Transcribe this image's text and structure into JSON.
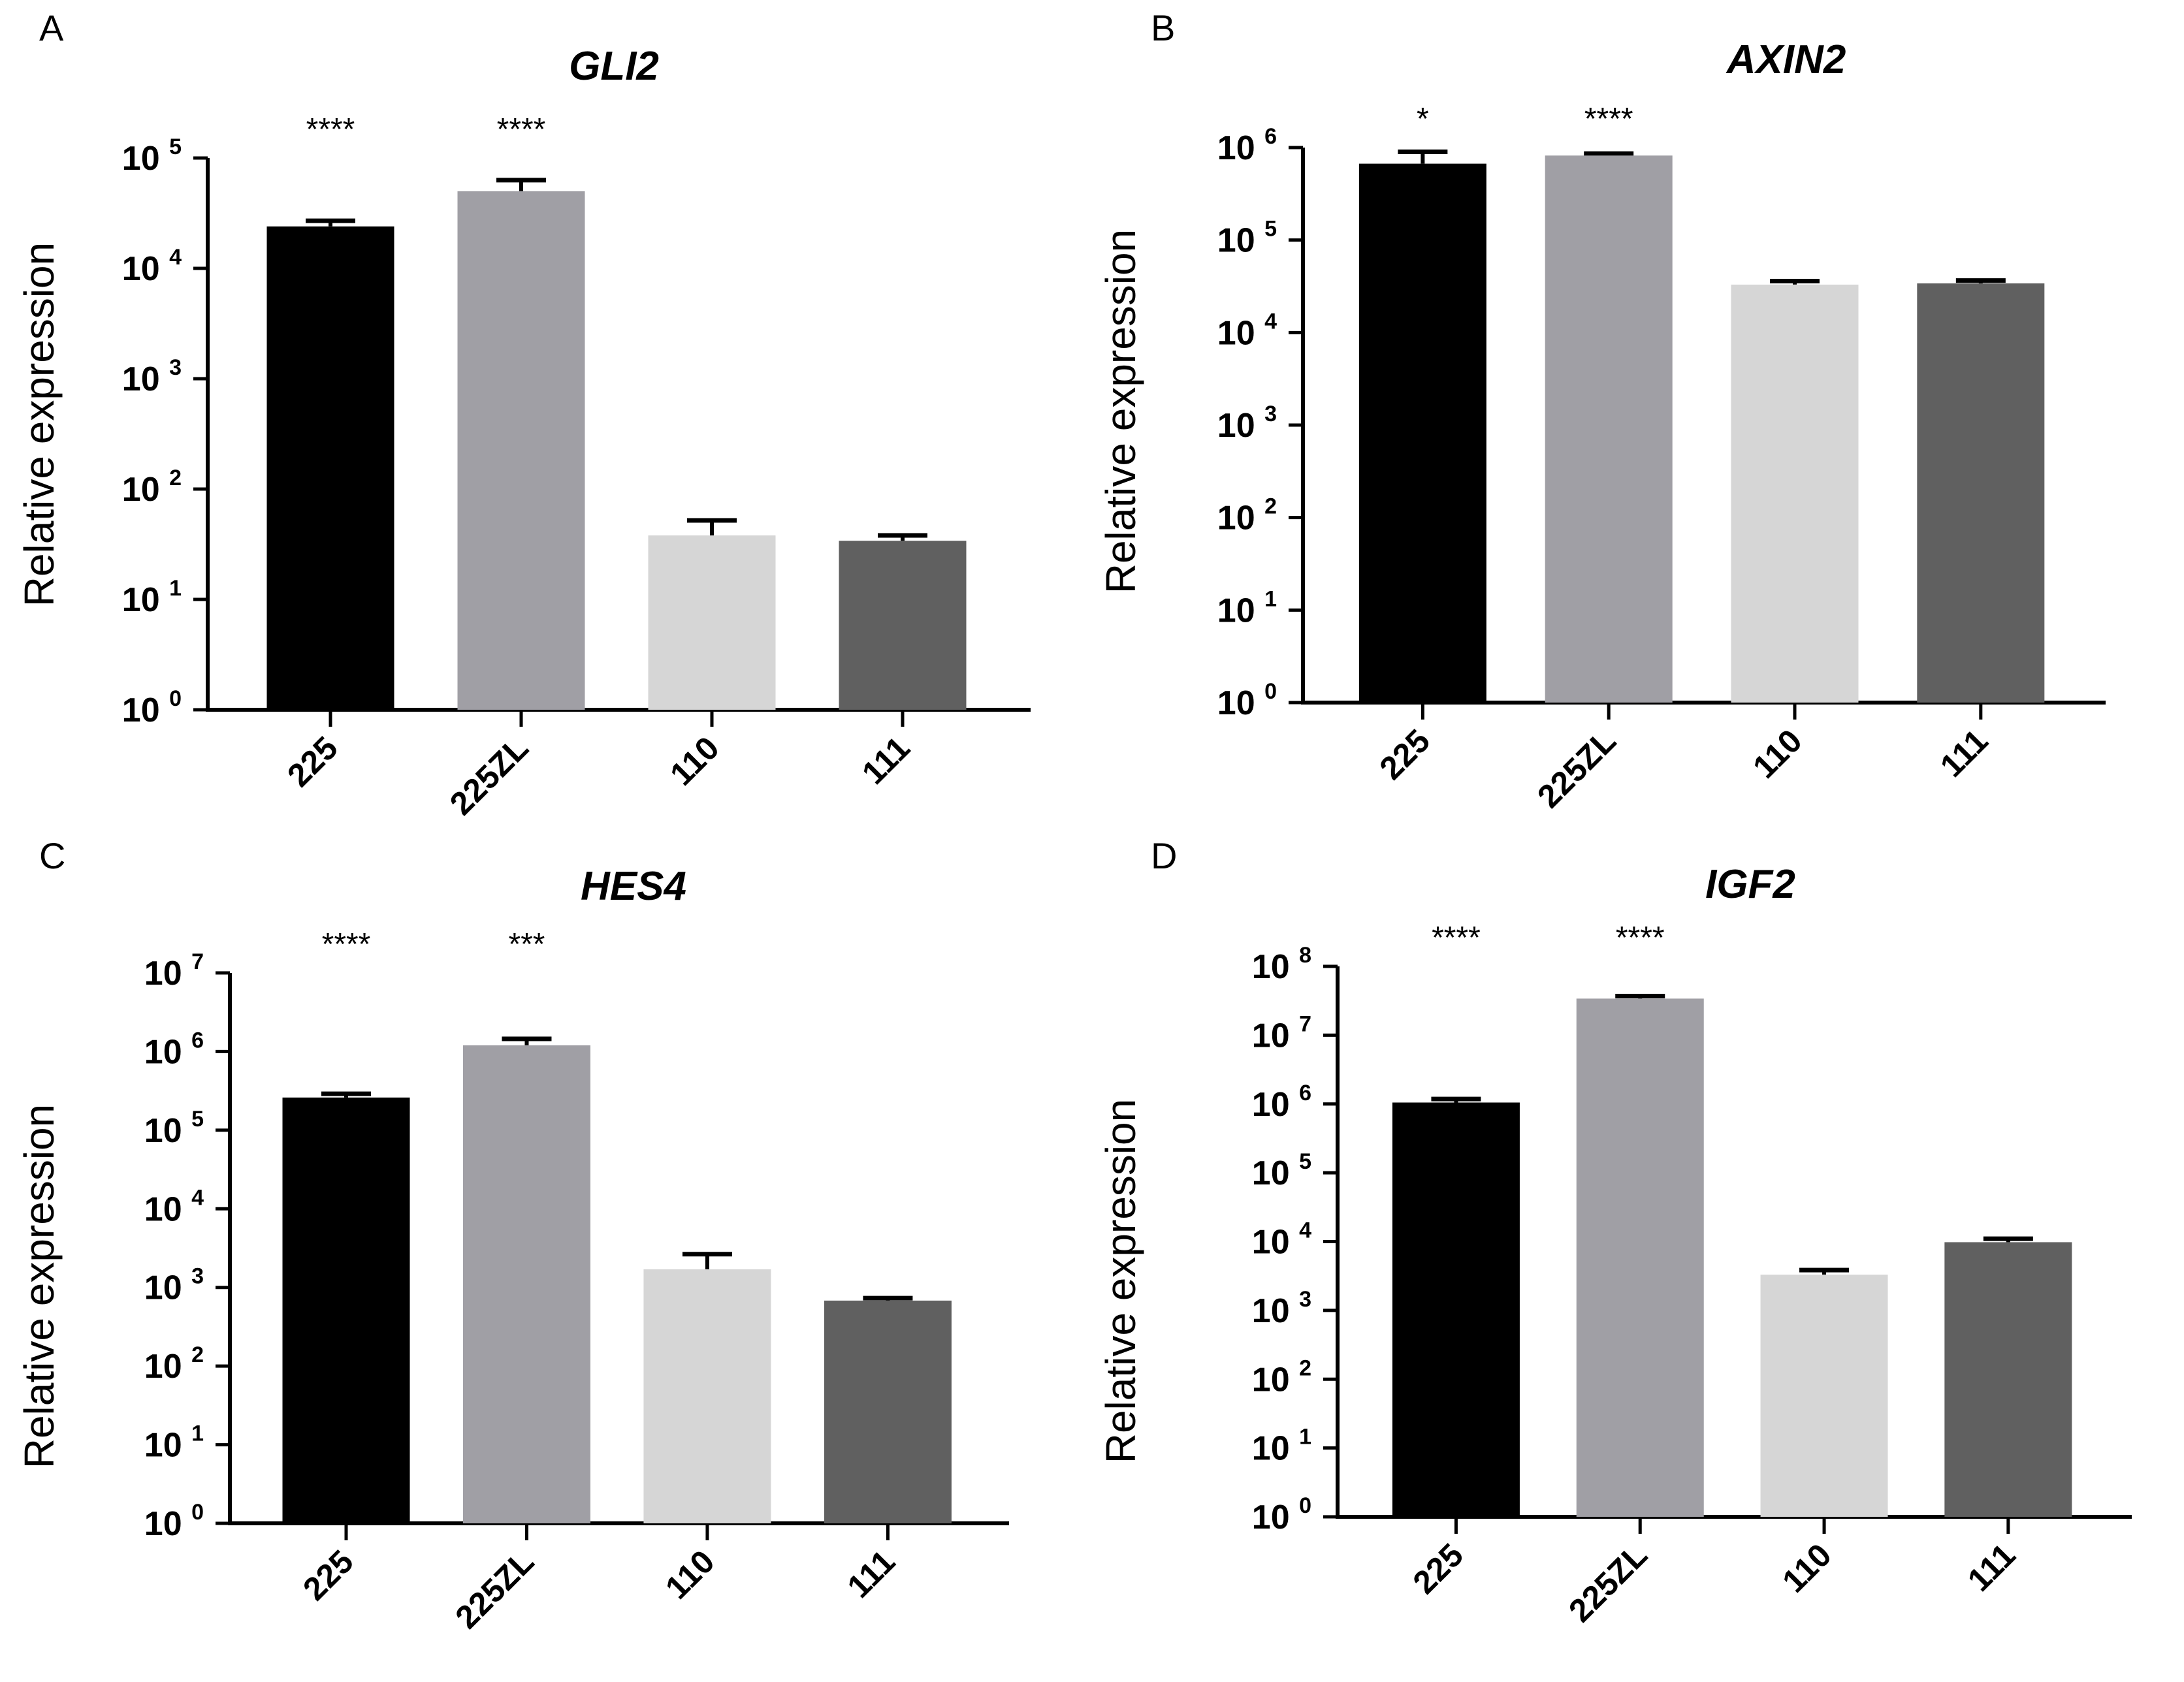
{
  "colors": {
    "225": "#000000",
    "225ZL": "#a09fa5",
    "110": "#d6d6d6",
    "111": "#606060",
    "axis": "#000000"
  },
  "chart_data": [
    {
      "panel": "A",
      "type": "bar",
      "title": "GLI2",
      "ylabel": "Relative expression",
      "xlabel": "",
      "yscale": "log",
      "ylim": [
        1,
        100000
      ],
      "ytick_base": "10",
      "yticks": [
        {
          "value": 1,
          "exp": "0"
        },
        {
          "value": 10,
          "exp": "1"
        },
        {
          "value": 100,
          "exp": "2"
        },
        {
          "value": 1000,
          "exp": "3"
        },
        {
          "value": 10000,
          "exp": "4"
        },
        {
          "value": 100000,
          "exp": "5"
        }
      ],
      "categories": [
        "225",
        "225ZL",
        "110",
        "111"
      ],
      "values": [
        24000,
        50000,
        38,
        34
      ],
      "error_upper": [
        27000,
        63000,
        52,
        38
      ],
      "significance": [
        "****",
        "****",
        "",
        ""
      ]
    },
    {
      "panel": "B",
      "type": "bar",
      "title": "AXIN2",
      "ylabel": "Relative expression",
      "xlabel": "",
      "yscale": "log",
      "ylim": [
        1,
        1000000
      ],
      "ytick_base": "10",
      "yticks": [
        {
          "value": 1,
          "exp": "0"
        },
        {
          "value": 10,
          "exp": "1"
        },
        {
          "value": 100,
          "exp": "2"
        },
        {
          "value": 1000,
          "exp": "3"
        },
        {
          "value": 10000,
          "exp": "4"
        },
        {
          "value": 100000,
          "exp": "5"
        },
        {
          "value": 1000000,
          "exp": "6"
        }
      ],
      "categories": [
        "225",
        "225ZL",
        "110",
        "111"
      ],
      "values": [
        670000,
        820000,
        33000,
        34000
      ],
      "error_upper": [
        900000,
        860000,
        36000,
        36500
      ],
      "significance": [
        "*",
        "****",
        "",
        ""
      ]
    },
    {
      "panel": "C",
      "type": "bar",
      "title": "HES4",
      "ylabel": "Relative expression",
      "xlabel": "",
      "yscale": "log",
      "ylim": [
        1,
        10000000
      ],
      "ytick_base": "10",
      "yticks": [
        {
          "value": 1,
          "exp": "0"
        },
        {
          "value": 10,
          "exp": "1"
        },
        {
          "value": 100,
          "exp": "2"
        },
        {
          "value": 1000,
          "exp": "3"
        },
        {
          "value": 10000,
          "exp": "4"
        },
        {
          "value": 100000,
          "exp": "5"
        },
        {
          "value": 1000000,
          "exp": "6"
        },
        {
          "value": 10000000,
          "exp": "7"
        }
      ],
      "categories": [
        "225",
        "225ZL",
        "110",
        "111"
      ],
      "values": [
        260000,
        1200000,
        1700,
        680
      ],
      "error_upper": [
        290000,
        1450000,
        2650,
        730
      ],
      "significance": [
        "****",
        "***",
        "",
        ""
      ]
    },
    {
      "panel": "D",
      "type": "bar",
      "title": "IGF2",
      "ylabel": "Relative expression",
      "xlabel": "",
      "yscale": "log",
      "ylim": [
        1,
        100000000
      ],
      "ytick_base": "10",
      "yticks": [
        {
          "value": 1,
          "exp": "0"
        },
        {
          "value": 10,
          "exp": "1"
        },
        {
          "value": 100,
          "exp": "2"
        },
        {
          "value": 1000,
          "exp": "3"
        },
        {
          "value": 10000,
          "exp": "4"
        },
        {
          "value": 100000,
          "exp": "5"
        },
        {
          "value": 1000000,
          "exp": "6"
        },
        {
          "value": 10000000,
          "exp": "7"
        },
        {
          "value": 100000000,
          "exp": "8"
        }
      ],
      "categories": [
        "225",
        "225ZL",
        "110",
        "111"
      ],
      "values": [
        1050000,
        34000000,
        3300,
        9800
      ],
      "error_upper": [
        1180000,
        37000000,
        3850,
        11000
      ],
      "significance": [
        "****",
        "****",
        "",
        ""
      ]
    }
  ]
}
